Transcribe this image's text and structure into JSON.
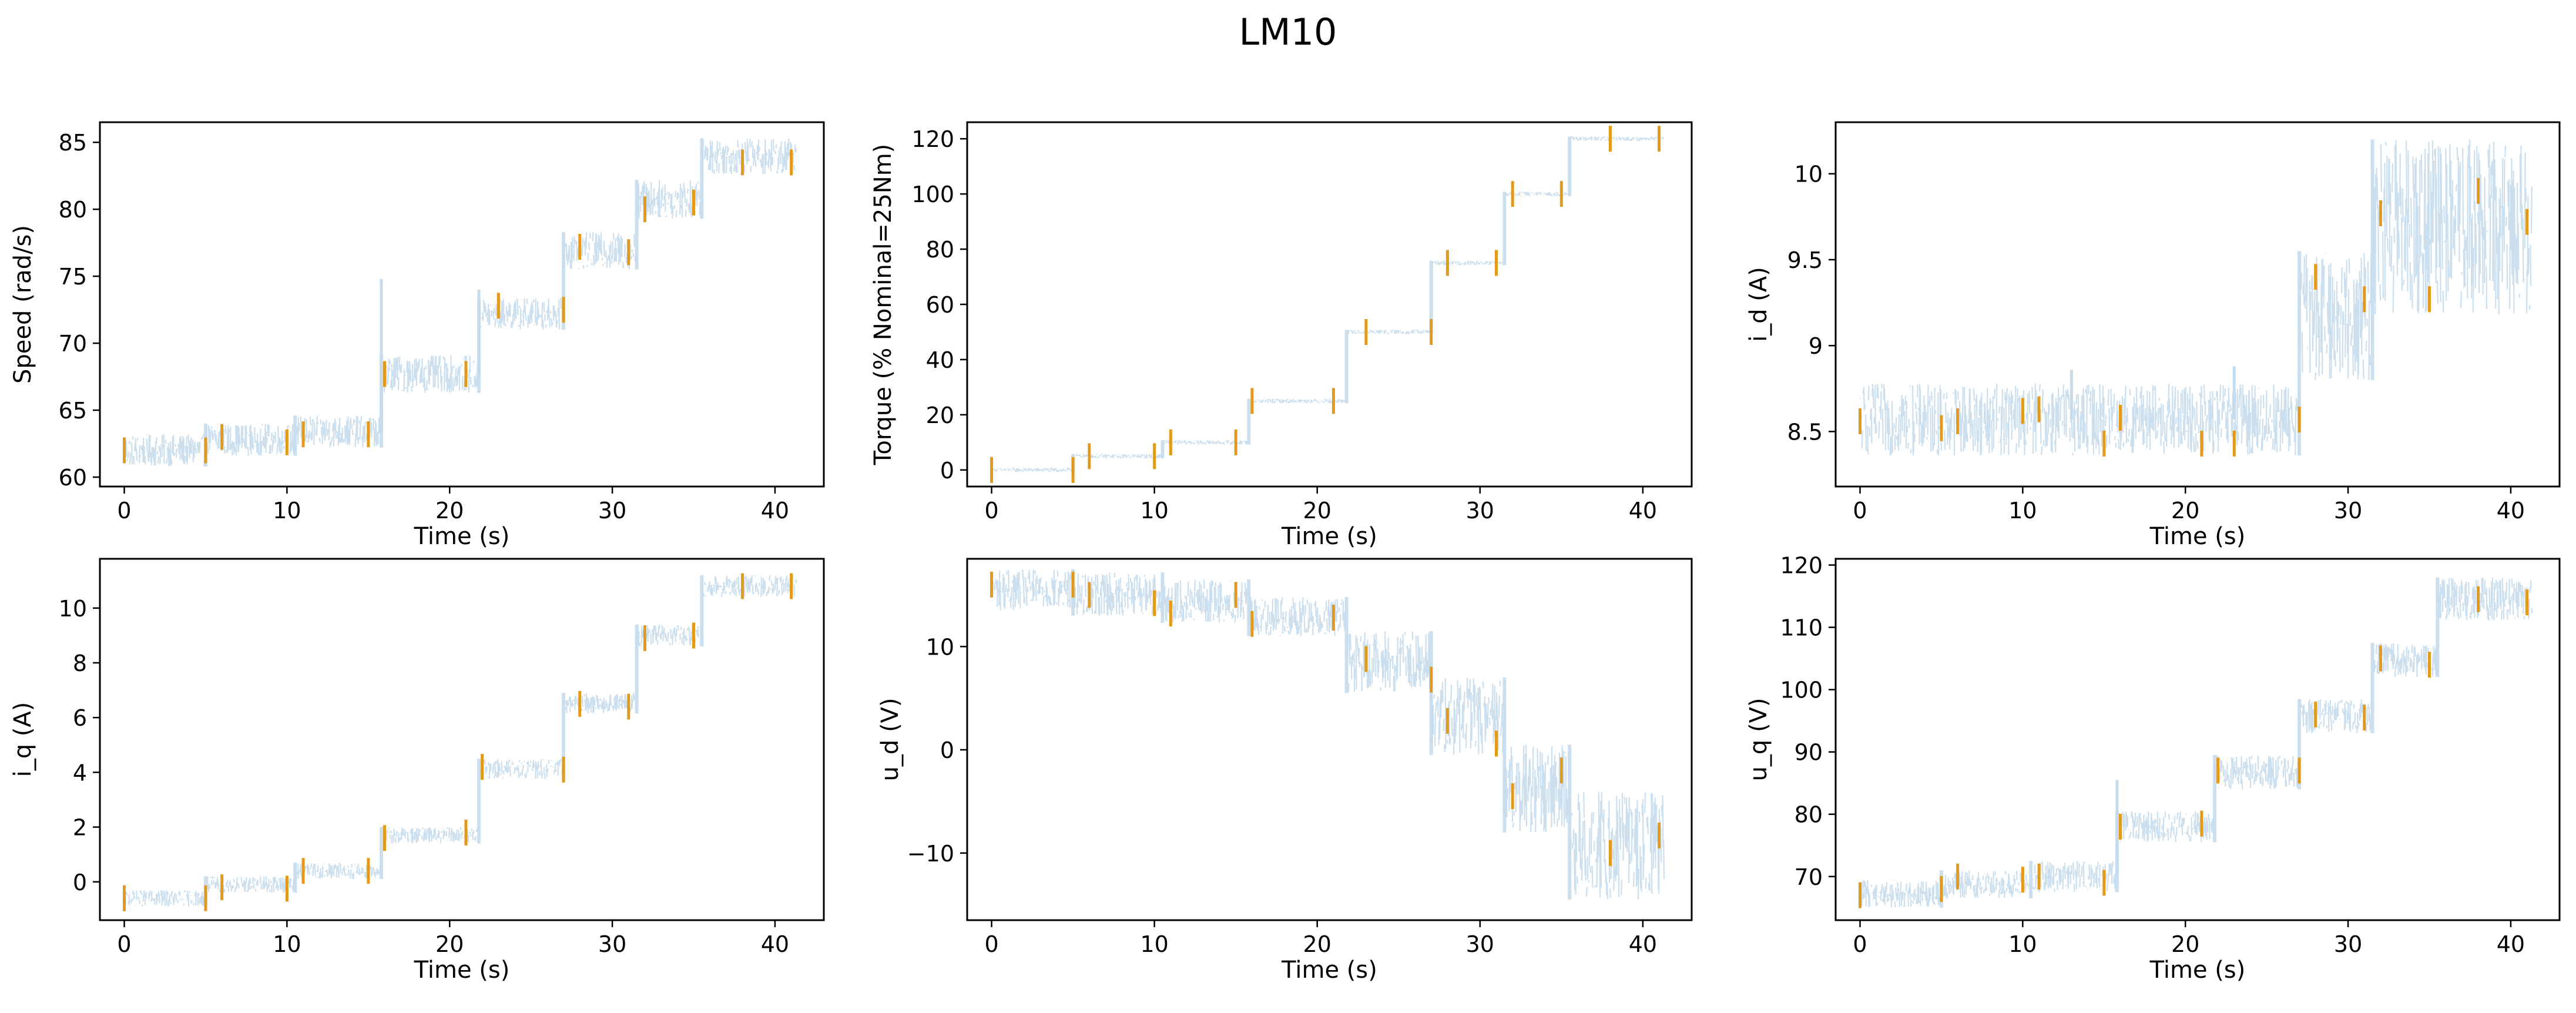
{
  "title": "LM10",
  "colors": {
    "signal": "#c6dbec",
    "marker": "#e39a1b",
    "axis": "#000000"
  },
  "chart_data": [
    {
      "type": "line",
      "xlabel": "Time (s)",
      "ylabel": "Speed (rad/s)",
      "xlim": [
        -1.5,
        43
      ],
      "ylim": [
        59.3,
        86.5
      ],
      "xticks": [
        0,
        10,
        20,
        30,
        40
      ],
      "yticks": [
        60,
        65,
        70,
        75,
        80,
        85
      ],
      "series": [
        {
          "style": "band",
          "segments": [
            {
              "x0": 0,
              "x1": 5,
              "lo": 60.8,
              "hi": 63.2
            },
            {
              "x0": 5,
              "x1": 10.5,
              "lo": 61.6,
              "hi": 64.0
            },
            {
              "x0": 10.5,
              "x1": 15.8,
              "lo": 62.2,
              "hi": 64.6
            },
            {
              "x0": 15.8,
              "x1": 21.8,
              "lo": 66.3,
              "hi": 69.1
            },
            {
              "x0": 21.8,
              "x1": 27.0,
              "lo": 71.0,
              "hi": 73.4
            },
            {
              "x0": 27.0,
              "x1": 31.5,
              "lo": 75.5,
              "hi": 78.3
            },
            {
              "x0": 31.5,
              "x1": 35.5,
              "lo": 79.3,
              "hi": 82.2
            },
            {
              "x0": 35.5,
              "x1": 41.3,
              "lo": 82.6,
              "hi": 85.3
            }
          ],
          "spikes": [
            {
              "x": 15.8,
              "y": 74.8
            },
            {
              "x": 21.8,
              "y": 74.0
            }
          ]
        },
        {
          "style": "marker",
          "points": [
            [
              0,
              62
            ],
            [
              5,
              62
            ],
            [
              6,
              63
            ],
            [
              10,
              62.6
            ],
            [
              11,
              63.2
            ],
            [
              15,
              63.2
            ],
            [
              16,
              67.7
            ],
            [
              21,
              67.7
            ],
            [
              23,
              72.8
            ],
            [
              27,
              72.5
            ],
            [
              28,
              77.2
            ],
            [
              31,
              76.8
            ],
            [
              32,
              80.0
            ],
            [
              35,
              80.5
            ],
            [
              38,
              83.5
            ],
            [
              41,
              83.5
            ]
          ]
        }
      ]
    },
    {
      "type": "line",
      "xlabel": "Time (s)",
      "ylabel": "Torque (% Nominal=25Nm)",
      "xlim": [
        -1.5,
        43
      ],
      "ylim": [
        -6,
        126
      ],
      "xticks": [
        0,
        10,
        20,
        30,
        40
      ],
      "yticks": [
        0,
        20,
        40,
        60,
        80,
        100,
        120
      ],
      "series": [
        {
          "style": "band",
          "segments": [
            {
              "x0": 0,
              "x1": 5,
              "lo": -0.8,
              "hi": 0.8
            },
            {
              "x0": 5,
              "x1": 10.5,
              "lo": 4.2,
              "hi": 5.8
            },
            {
              "x0": 10.5,
              "x1": 15.8,
              "lo": 9.2,
              "hi": 10.8
            },
            {
              "x0": 15.8,
              "x1": 21.8,
              "lo": 24.2,
              "hi": 25.8
            },
            {
              "x0": 21.8,
              "x1": 27.0,
              "lo": 49.2,
              "hi": 50.8
            },
            {
              "x0": 27.0,
              "x1": 31.5,
              "lo": 74.2,
              "hi": 75.8
            },
            {
              "x0": 31.5,
              "x1": 35.5,
              "lo": 99.2,
              "hi": 100.8
            },
            {
              "x0": 35.5,
              "x1": 41.3,
              "lo": 119.2,
              "hi": 120.8
            }
          ],
          "spikes": []
        },
        {
          "style": "marker",
          "points": [
            [
              0,
              0
            ],
            [
              5,
              0
            ],
            [
              6,
              5
            ],
            [
              10,
              5
            ],
            [
              11,
              10
            ],
            [
              15,
              10
            ],
            [
              16,
              25
            ],
            [
              21,
              25
            ],
            [
              23,
              50
            ],
            [
              27,
              50
            ],
            [
              28,
              75
            ],
            [
              31,
              75
            ],
            [
              32,
              100
            ],
            [
              35,
              100
            ],
            [
              38,
              120
            ],
            [
              41,
              120
            ]
          ]
        }
      ]
    },
    {
      "type": "line",
      "xlabel": "Time (s)",
      "ylabel": "i_d (A)",
      "xlim": [
        -1.5,
        43
      ],
      "ylim": [
        8.18,
        10.3
      ],
      "xticks": [
        0,
        10,
        20,
        30,
        40
      ],
      "yticks": [
        8.5,
        9.0,
        9.5,
        10.0
      ],
      "series": [
        {
          "style": "band",
          "segments": [
            {
              "x0": 0,
              "x1": 27.0,
              "lo": 8.36,
              "hi": 8.78
            },
            {
              "x0": 27.0,
              "x1": 31.5,
              "lo": 8.8,
              "hi": 9.55
            },
            {
              "x0": 31.5,
              "x1": 41.3,
              "lo": 9.18,
              "hi": 10.2
            }
          ],
          "spikes": [
            {
              "x": 13,
              "y": 8.86
            },
            {
              "x": 23,
              "y": 8.88
            }
          ]
        },
        {
          "style": "marker",
          "points": [
            [
              0,
              8.56
            ],
            [
              5,
              8.52
            ],
            [
              6,
              8.56
            ],
            [
              10,
              8.62
            ],
            [
              11,
              8.63
            ],
            [
              15,
              8.43
            ],
            [
              16,
              8.58
            ],
            [
              21,
              8.43
            ],
            [
              23,
              8.43
            ],
            [
              27,
              8.57
            ],
            [
              28,
              9.4
            ],
            [
              31,
              9.27
            ],
            [
              32,
              9.77
            ],
            [
              35,
              9.27
            ],
            [
              38,
              9.9
            ],
            [
              41,
              9.72
            ]
          ]
        }
      ]
    },
    {
      "type": "line",
      "xlabel": "Time (s)",
      "ylabel": "i_q (A)",
      "xlim": [
        -1.5,
        43
      ],
      "ylim": [
        -1.4,
        11.8
      ],
      "xticks": [
        0,
        10,
        20,
        30,
        40
      ],
      "yticks": [
        0,
        2,
        4,
        6,
        8,
        10
      ],
      "series": [
        {
          "style": "band",
          "segments": [
            {
              "x0": 0,
              "x1": 5,
              "lo": -0.9,
              "hi": -0.3
            },
            {
              "x0": 5,
              "x1": 10.5,
              "lo": -0.4,
              "hi": 0.2
            },
            {
              "x0": 10.5,
              "x1": 15.8,
              "lo": 0.1,
              "hi": 0.7
            },
            {
              "x0": 15.8,
              "x1": 21.8,
              "lo": 1.4,
              "hi": 2.0
            },
            {
              "x0": 21.8,
              "x1": 27.0,
              "lo": 3.75,
              "hi": 4.5
            },
            {
              "x0": 27.0,
              "x1": 31.5,
              "lo": 6.15,
              "hi": 6.9
            },
            {
              "x0": 31.5,
              "x1": 35.5,
              "lo": 8.6,
              "hi": 9.4
            },
            {
              "x0": 35.5,
              "x1": 41.3,
              "lo": 10.4,
              "hi": 11.2
            }
          ],
          "spikes": []
        },
        {
          "style": "marker",
          "points": [
            [
              0,
              -0.6
            ],
            [
              5,
              -0.6
            ],
            [
              6,
              -0.2
            ],
            [
              10,
              -0.25
            ],
            [
              11,
              0.4
            ],
            [
              15,
              0.4
            ],
            [
              16,
              1.6
            ],
            [
              21,
              1.8
            ],
            [
              22,
              4.2
            ],
            [
              27,
              4.1
            ],
            [
              28,
              6.5
            ],
            [
              31,
              6.4
            ],
            [
              32,
              8.9
            ],
            [
              35,
              9.0
            ],
            [
              38,
              10.8
            ],
            [
              41,
              10.8
            ]
          ]
        }
      ]
    },
    {
      "type": "line",
      "xlabel": "Time (s)",
      "ylabel": "u_d (V)",
      "xlim": [
        -1.5,
        43
      ],
      "ylim": [
        -16.5,
        18.5
      ],
      "xticks": [
        0,
        10,
        20,
        30,
        40
      ],
      "yticks": [
        -10,
        0,
        10
      ],
      "series": [
        {
          "style": "band",
          "segments": [
            {
              "x0": 0,
              "x1": 5,
              "lo": 13.5,
              "hi": 17.5
            },
            {
              "x0": 5,
              "x1": 10.5,
              "lo": 13.0,
              "hi": 17.2
            },
            {
              "x0": 10.5,
              "x1": 15.8,
              "lo": 12.3,
              "hi": 16.5
            },
            {
              "x0": 15.8,
              "x1": 21.8,
              "lo": 11.0,
              "hi": 14.8
            },
            {
              "x0": 21.8,
              "x1": 27.0,
              "lo": 5.5,
              "hi": 11.5
            },
            {
              "x0": 27.0,
              "x1": 31.5,
              "lo": -0.5,
              "hi": 7.0
            },
            {
              "x0": 31.5,
              "x1": 35.5,
              "lo": -8.0,
              "hi": 0.5
            },
            {
              "x0": 35.5,
              "x1": 41.3,
              "lo": -14.5,
              "hi": -4.0
            }
          ],
          "spikes": []
        },
        {
          "style": "marker",
          "points": [
            [
              0,
              16
            ],
            [
              5,
              16
            ],
            [
              6,
              15
            ],
            [
              10,
              14.2
            ],
            [
              11,
              13.2
            ],
            [
              15,
              15
            ],
            [
              16,
              12.2
            ],
            [
              21,
              12.8
            ],
            [
              23,
              8.8
            ],
            [
              27,
              6.8
            ],
            [
              28,
              2.8
            ],
            [
              31,
              0.6
            ],
            [
              32,
              -4.5
            ],
            [
              35,
              -2
            ],
            [
              38,
              -10
            ],
            [
              41,
              -8.3
            ]
          ]
        }
      ]
    },
    {
      "type": "line",
      "xlabel": "Time (s)",
      "ylabel": "u_q (V)",
      "xlim": [
        -1.5,
        43
      ],
      "ylim": [
        63.0,
        121.0
      ],
      "xticks": [
        0,
        10,
        20,
        30,
        40
      ],
      "yticks": [
        70,
        80,
        90,
        100,
        110,
        120
      ],
      "series": [
        {
          "style": "band",
          "segments": [
            {
              "x0": 0,
              "x1": 5,
              "lo": 65.0,
              "hi": 69.5
            },
            {
              "x0": 5,
              "x1": 10.5,
              "lo": 66.5,
              "hi": 71.0
            },
            {
              "x0": 10.5,
              "x1": 15.8,
              "lo": 67.5,
              "hi": 72.5
            },
            {
              "x0": 15.8,
              "x1": 21.8,
              "lo": 75.5,
              "hi": 80.5
            },
            {
              "x0": 21.8,
              "x1": 27.0,
              "lo": 84.0,
              "hi": 89.5
            },
            {
              "x0": 27.0,
              "x1": 31.5,
              "lo": 93.0,
              "hi": 98.5
            },
            {
              "x0": 31.5,
              "x1": 35.5,
              "lo": 102.0,
              "hi": 107.5
            },
            {
              "x0": 35.5,
              "x1": 41.3,
              "lo": 111.0,
              "hi": 118.0
            }
          ],
          "spikes": [
            {
              "x": 15.8,
              "y": 85.5
            }
          ]
        },
        {
          "style": "marker",
          "points": [
            [
              0,
              67
            ],
            [
              5,
              68
            ],
            [
              6,
              70
            ],
            [
              10,
              69.5
            ],
            [
              11,
              70
            ],
            [
              15,
              69
            ],
            [
              16,
              78
            ],
            [
              21,
              78.5
            ],
            [
              22,
              87
            ],
            [
              27,
              87
            ],
            [
              28,
              96
            ],
            [
              31,
              95.5
            ],
            [
              32,
              105
            ],
            [
              35,
              104
            ],
            [
              38,
              114.5
            ],
            [
              41,
              114
            ]
          ]
        }
      ]
    }
  ]
}
